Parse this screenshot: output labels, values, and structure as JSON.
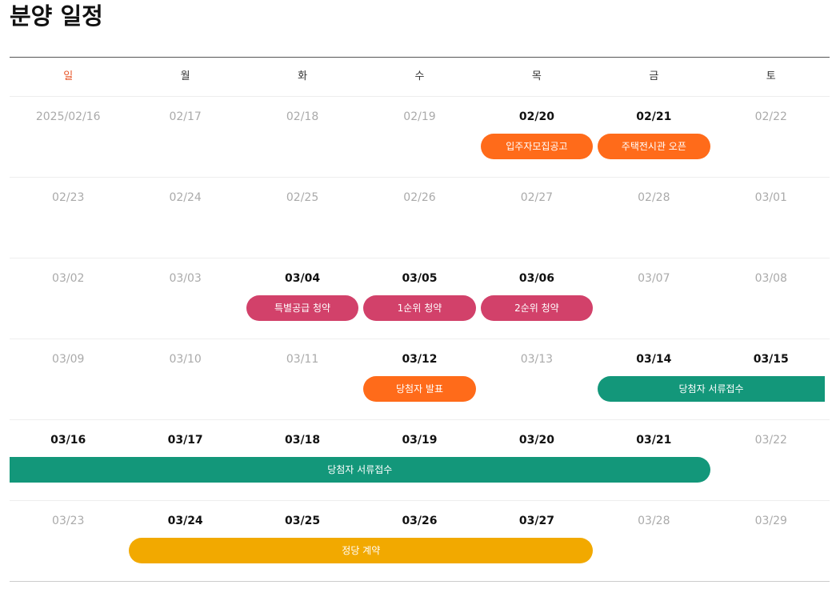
{
  "title": "분양 일정",
  "colors": {
    "announce": "#ff6b1a",
    "subscription": "#d2416a",
    "documents": "#13977a",
    "contract": "#f2a900",
    "sunday": "#e8562a"
  },
  "weekdays": [
    "일",
    "월",
    "화",
    "수",
    "목",
    "금",
    "토"
  ],
  "weeks": [
    {
      "days": [
        {
          "label": "2025/02/16",
          "active": false
        },
        {
          "label": "02/17",
          "active": false
        },
        {
          "label": "02/18",
          "active": false
        },
        {
          "label": "02/19",
          "active": false
        },
        {
          "label": "02/20",
          "active": true
        },
        {
          "label": "02/21",
          "active": true
        },
        {
          "label": "02/22",
          "active": false
        }
      ],
      "events": [
        {
          "name": "event-resident-recruitment",
          "label": "입주자모집공고",
          "color": "announce",
          "start": 4,
          "end": 4
        },
        {
          "name": "event-model-house-open",
          "label": "주택전시관 오픈",
          "color": "announce",
          "start": 5,
          "end": 5
        }
      ]
    },
    {
      "days": [
        {
          "label": "02/23",
          "active": false
        },
        {
          "label": "02/24",
          "active": false
        },
        {
          "label": "02/25",
          "active": false
        },
        {
          "label": "02/26",
          "active": false
        },
        {
          "label": "02/27",
          "active": false
        },
        {
          "label": "02/28",
          "active": false
        },
        {
          "label": "03/01",
          "active": false
        }
      ],
      "events": []
    },
    {
      "days": [
        {
          "label": "03/02",
          "active": false
        },
        {
          "label": "03/03",
          "active": false
        },
        {
          "label": "03/04",
          "active": true
        },
        {
          "label": "03/05",
          "active": true
        },
        {
          "label": "03/06",
          "active": true
        },
        {
          "label": "03/07",
          "active": false
        },
        {
          "label": "03/08",
          "active": false
        }
      ],
      "events": [
        {
          "name": "event-special-supply",
          "label": "특별공급 청약",
          "color": "subscription",
          "start": 2,
          "end": 2
        },
        {
          "name": "event-first-priority",
          "label": "1순위 청약",
          "color": "subscription",
          "start": 3,
          "end": 3
        },
        {
          "name": "event-second-priority",
          "label": "2순위 청약",
          "color": "subscription",
          "start": 4,
          "end": 4
        }
      ]
    },
    {
      "days": [
        {
          "label": "03/09",
          "active": false
        },
        {
          "label": "03/10",
          "active": false
        },
        {
          "label": "03/11",
          "active": false
        },
        {
          "label": "03/12",
          "active": true
        },
        {
          "label": "03/13",
          "active": false
        },
        {
          "label": "03/14",
          "active": true
        },
        {
          "label": "03/15",
          "active": true
        }
      ],
      "events": [
        {
          "name": "event-winner-announcement",
          "label": "당첨자 발표",
          "color": "announce",
          "start": 3,
          "end": 3
        },
        {
          "name": "event-winner-documents",
          "label": "당첨자 서류접수",
          "color": "documents",
          "start": 5,
          "end": 6,
          "continues_right": true
        }
      ]
    },
    {
      "days": [
        {
          "label": "03/16",
          "active": true
        },
        {
          "label": "03/17",
          "active": true
        },
        {
          "label": "03/18",
          "active": true
        },
        {
          "label": "03/19",
          "active": true
        },
        {
          "label": "03/20",
          "active": true
        },
        {
          "label": "03/21",
          "active": true
        },
        {
          "label": "03/22",
          "active": false
        }
      ],
      "events": [
        {
          "name": "event-winner-documents-cont",
          "label": "당첨자 서류접수",
          "color": "documents",
          "start": 0,
          "end": 5,
          "continues_left": true
        }
      ]
    },
    {
      "days": [
        {
          "label": "03/23",
          "active": false
        },
        {
          "label": "03/24",
          "active": true
        },
        {
          "label": "03/25",
          "active": true
        },
        {
          "label": "03/26",
          "active": true
        },
        {
          "label": "03/27",
          "active": true
        },
        {
          "label": "03/28",
          "active": false
        },
        {
          "label": "03/29",
          "active": false
        }
      ],
      "events": [
        {
          "name": "event-contract",
          "label": "정당 계약",
          "color": "contract",
          "start": 1,
          "end": 4
        }
      ]
    }
  ]
}
